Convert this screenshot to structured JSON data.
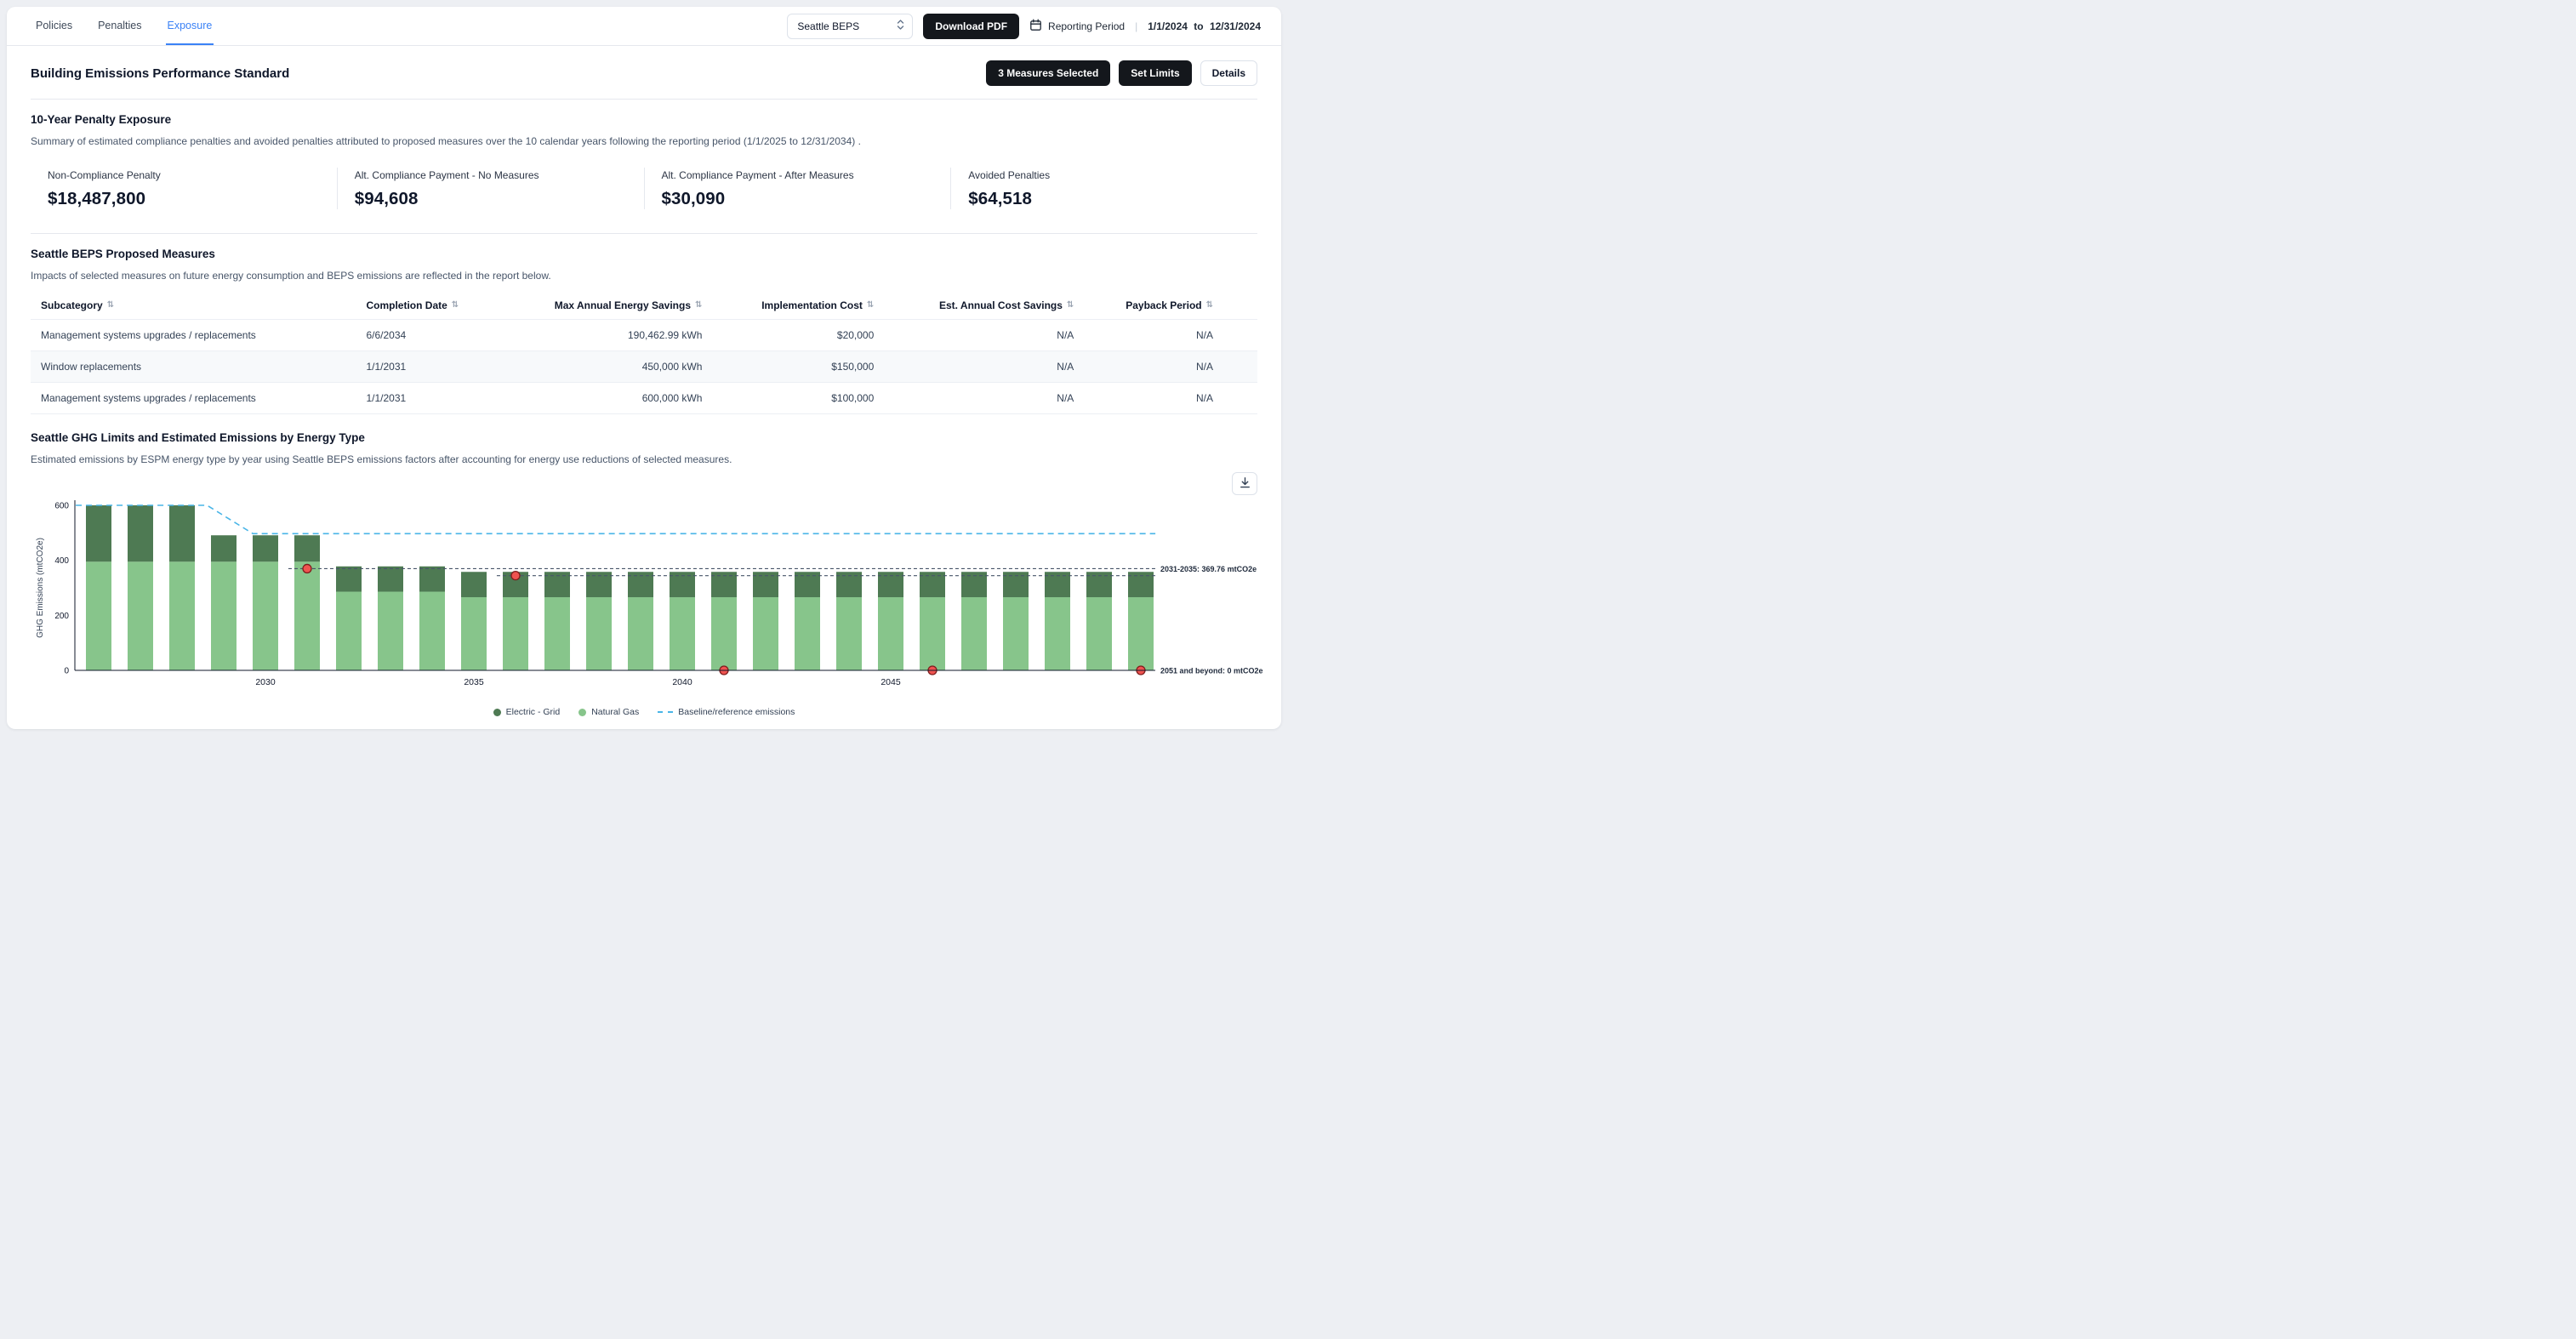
{
  "colors": {
    "accent": "#3b82f6",
    "dark_button": "#14171c"
  },
  "topbar": {
    "tabs": [
      {
        "label": "Policies",
        "active": false
      },
      {
        "label": "Penalties",
        "active": false
      },
      {
        "label": "Exposure",
        "active": true
      }
    ],
    "policy_select": {
      "value": "Seattle BEPS"
    },
    "download_pdf_label": "Download PDF",
    "reporting_period_label": "Reporting Period",
    "divider": "|",
    "reporting_period_value": "1/1/2024 to 12/31/2024"
  },
  "header": {
    "title": "Building Emissions Performance Standard",
    "measures_selected_button": "3 Measures Selected",
    "set_limits_button": "Set Limits",
    "details_button": "Details"
  },
  "penalty_exposure": {
    "title": "10-Year Penalty Exposure",
    "description": "Summary of estimated compliance penalties and avoided penalties attributed to proposed measures over the 10 calendar years following the reporting period (1/1/2025 to 12/31/2034) .",
    "stats": [
      {
        "label": "Non-Compliance Penalty",
        "value": "$18,487,800"
      },
      {
        "label": "Alt. Compliance Payment - No Measures",
        "value": "$94,608"
      },
      {
        "label": "Alt. Compliance Payment - After Measures",
        "value": "$30,090"
      },
      {
        "label": "Avoided Penalties",
        "value": "$64,518"
      }
    ]
  },
  "measures": {
    "title": "Seattle BEPS Proposed Measures",
    "description": "Impacts of selected measures on future energy consumption and BEPS emissions are reflected in the report below.",
    "table": {
      "columns": [
        {
          "label": "Subcategory"
        },
        {
          "label": "Completion Date"
        },
        {
          "label": "Max Annual Energy Savings"
        },
        {
          "label": "Implementation Cost"
        },
        {
          "label": "Est. Annual Cost Savings"
        },
        {
          "label": "Payback Period"
        }
      ],
      "rows": [
        [
          "Management systems upgrades / replacements",
          "6/6/2034",
          "190,462.99 kWh",
          "$20,000",
          "N/A",
          "N/A"
        ],
        [
          "Window replacements",
          "1/1/2031",
          "450,000 kWh",
          "$150,000",
          "N/A",
          "N/A"
        ],
        [
          "Management systems upgrades / replacements",
          "1/1/2031",
          "600,000 kWh",
          "$100,000",
          "N/A",
          "N/A"
        ]
      ]
    }
  },
  "chart_section": {
    "title": "Seattle GHG Limits and Estimated Emissions by Energy Type",
    "description": "Estimated emissions by ESPM energy type by year using Seattle BEPS emissions factors after accounting for energy use reductions of selected measures."
  },
  "chart_data": {
    "type": "bar",
    "stacked": true,
    "title": "Seattle GHG Limits and Estimated Emissions by Energy Type",
    "ylabel": "GHG Emissions (mtCO2e)",
    "ylim": [
      0,
      600
    ],
    "yticks": [
      0,
      200,
      400,
      600
    ],
    "x": [
      2026,
      2027,
      2028,
      2029,
      2030,
      2031,
      2032,
      2033,
      2034,
      2035,
      2036,
      2037,
      2038,
      2039,
      2040,
      2041,
      2042,
      2043,
      2044,
      2045,
      2046,
      2047,
      2048,
      2049,
      2050,
      2051
    ],
    "xticks": [
      2030,
      2035,
      2040,
      2045
    ],
    "series": [
      {
        "name": "Natural Gas",
        "color": "#87c58b",
        "values": [
          395,
          395,
          395,
          395,
          395,
          395,
          286,
          286,
          286,
          266,
          266,
          266,
          266,
          266,
          266,
          266,
          266,
          266,
          266,
          266,
          266,
          266,
          266,
          266,
          266,
          266
        ]
      },
      {
        "name": "Electric - Grid",
        "color": "#4e7a53",
        "values": [
          205,
          205,
          205,
          96,
          96,
          96,
          92,
          92,
          92,
          92,
          92,
          92,
          92,
          92,
          92,
          92,
          92,
          92,
          92,
          92,
          92,
          92,
          92,
          92,
          92,
          92
        ]
      }
    ],
    "baseline": {
      "name": "Baseline/reference emissions",
      "color": "#49b5e7",
      "points": [
        [
          2025.45,
          600
        ],
        [
          2028.6,
          600
        ],
        [
          2029.7,
          497
        ],
        [
          2051.35,
          497
        ]
      ]
    },
    "limits": [
      {
        "label": "2031-2035: 369.76 mtCO2e",
        "value": 369.76,
        "from": 2030.55
      },
      {
        "label": "",
        "value": 344.4,
        "from": 2035.55
      },
      {
        "label": "2051 and beyond: 0 mtCO2e",
        "value": 0,
        "from": 2050.55
      }
    ],
    "limit_color": "#475569",
    "marker_color": "#ef5350",
    "marker_stroke": "#7f1d1d",
    "markers": [
      {
        "x": 2031,
        "y": 369.76
      },
      {
        "x": 2036,
        "y": 344.4
      },
      {
        "x": 2041,
        "y": 0
      },
      {
        "x": 2046,
        "y": 0
      },
      {
        "x": 2051,
        "y": 0
      }
    ],
    "legend": [
      "Electric - Grid",
      "Natural Gas",
      "Baseline/reference emissions"
    ]
  }
}
